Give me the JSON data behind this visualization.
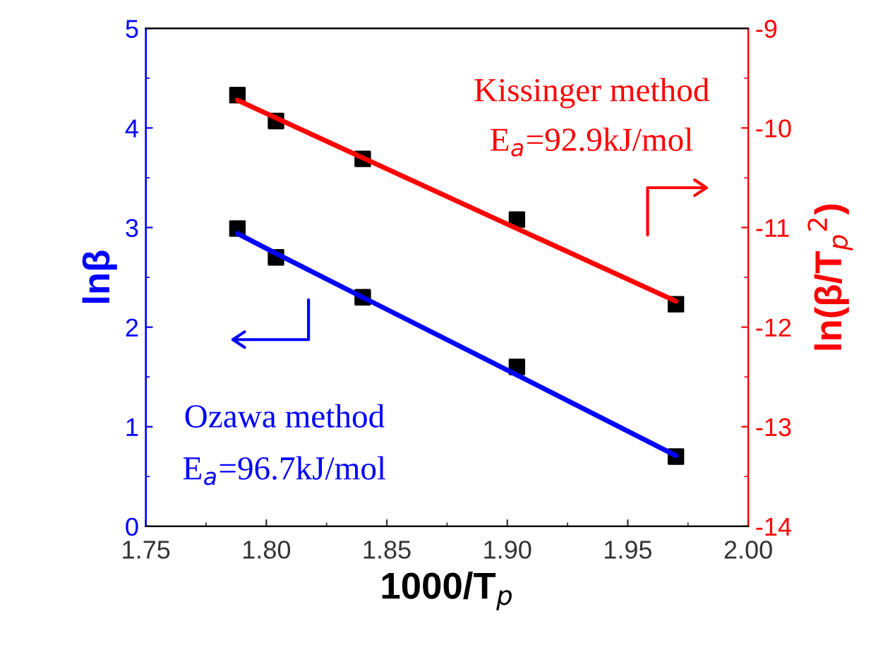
{
  "chart_data": {
    "type": "scatter",
    "xlabel": "1000/T$_{p}$",
    "ylabel": "lnβ",
    "y2label": "ln(β/T$_{p}$$^{2}$)",
    "annotations": [
      "Kissinger method",
      "E$_{a}$=92.9kJ/mol",
      "Ozawa method",
      "E$_{a}$=96.7kJ/mol"
    ],
    "x": [
      1.788,
      1.804,
      1.84,
      1.904,
      1.97
    ],
    "series": [
      {
        "type": "line",
        "color": "#ff0000",
        "axis": "y2",
        "values": [
          -9.72,
          -9.9,
          -10.3,
          -11.01,
          -11.74
        ],
        "marker": "none"
      },
      {
        "type": "line",
        "color": "#0000ff",
        "axis": "y",
        "values": [
          2.94,
          2.74,
          2.3,
          1.52,
          0.71
        ],
        "marker": "none"
      },
      {
        "color": "#000000",
        "axis": "y2",
        "values": [
          -9.67,
          -9.93,
          -10.31,
          -10.92,
          -11.77
        ],
        "marker": "square"
      },
      {
        "color": "#000000",
        "axis": "y",
        "values": [
          2.99,
          2.7,
          2.3,
          1.6,
          0.7
        ],
        "marker": "square"
      }
    ],
    "xlim": [
      1.75,
      2.0
    ],
    "xticks": [
      {
        "value": 1.75,
        "label": "1.75"
      },
      {
        "value": 1.8,
        "label": "1.80"
      },
      {
        "value": 1.85,
        "label": "1.85"
      },
      {
        "value": 1.9,
        "label": "1.90"
      },
      {
        "value": 1.95,
        "label": "1.95"
      },
      {
        "value": 2.0,
        "label": "2.00"
      }
    ],
    "ylim": [
      0,
      5
    ],
    "yticks": [
      0,
      1,
      2,
      3,
      4,
      5
    ],
    "y2lim": [
      -14,
      -9
    ],
    "y2ticks": [
      -14,
      -13,
      -12,
      -11,
      -10,
      -9
    ],
    "grid": false,
    "legend": false
  }
}
